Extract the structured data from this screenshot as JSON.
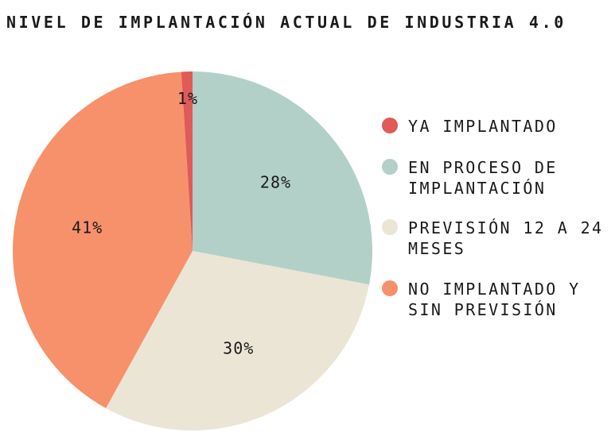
{
  "chart_data": {
    "type": "pie",
    "title": "NIVEL DE IMPLANTACIÓN ACTUAL DE INDUSTRIA 4.0",
    "legend_position": "right",
    "slices": [
      {
        "label": "EN PROCESO DE IMPLANTACIÓN",
        "value": 28,
        "display": "28%",
        "color": "#b3d0c8"
      },
      {
        "label": "PREVISIÓN 12 A 24 MESES",
        "value": 30,
        "display": "30%",
        "color": "#ebe5d6"
      },
      {
        "label": "NO IMPLANTADO Y SIN PREVISIÓN",
        "value": 41,
        "display": "41%",
        "color": "#f6916c"
      },
      {
        "label": "YA IMPLANTADO",
        "value": 1,
        "display": "1%",
        "color": "#e05a56"
      }
    ],
    "legend": [
      {
        "label": "YA IMPLANTADO",
        "color": "#e05a56"
      },
      {
        "label": "EN PROCESO DE IMPLANTACIÓN",
        "color": "#b3d0c8"
      },
      {
        "label": "PREVISIÓN 12 A 24 MESES",
        "color": "#ebe5d6"
      },
      {
        "label": "NO IMPLANTADO Y SIN PREVISIÓN",
        "color": "#f6916c"
      }
    ]
  }
}
